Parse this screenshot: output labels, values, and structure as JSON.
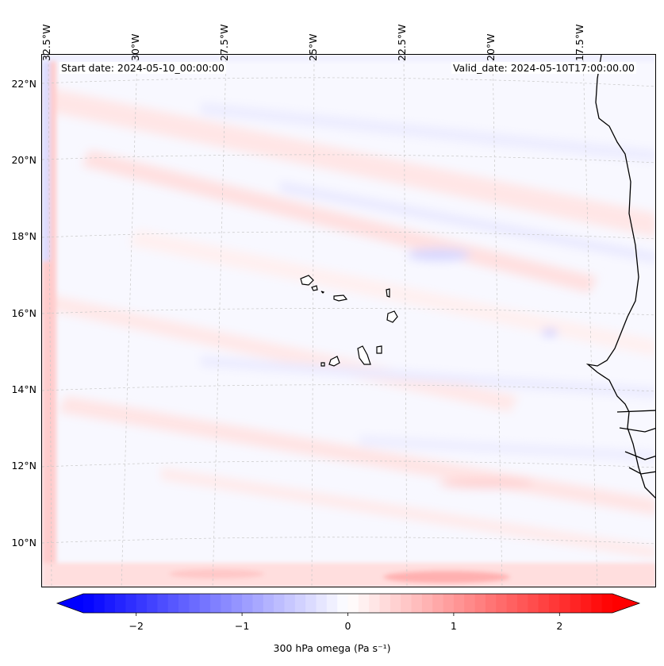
{
  "map": {
    "start_date": "Start date: 2024-05-10_00:00:00",
    "valid_date": "Valid_date: 2024-05-10T17:00:00.00",
    "longitude_labels": [
      "32.5°W",
      "30°W",
      "27.5°W",
      "25°W",
      "22.5°W",
      "20°W",
      "17.5°W"
    ],
    "latitude_labels": [
      "22°N",
      "20°N",
      "18°N",
      "16°N",
      "14°N",
      "12°N",
      "10°N"
    ],
    "region": "Cape Verde islands and West African coast",
    "colors": {
      "negative": "#0000ff",
      "neutral": "#ffffff",
      "positive": "#ff0000",
      "coastline": "#000000",
      "grid": "#b0b0b0"
    }
  },
  "colorbar": {
    "label": "300 hPa omega (Pa s⁻¹)",
    "min": -2.5,
    "max": 2.5,
    "ticks": [
      "−2",
      "−1",
      "0",
      "1",
      "2"
    ],
    "tick_values": [
      -2,
      -1,
      0,
      1,
      2
    ],
    "extend": "both",
    "levels": 50
  }
}
